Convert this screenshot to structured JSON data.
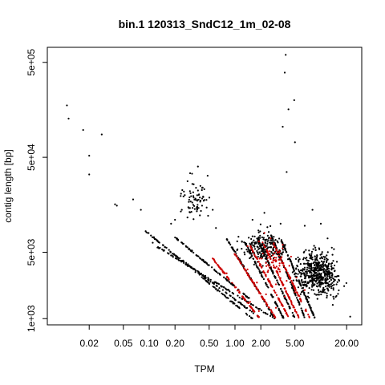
{
  "chart_data": {
    "type": "scatter",
    "title": "bin.1 120313_SndC12_1m_02-08",
    "xlabel": "TPM",
    "ylabel": "contig length [bp]",
    "x_scale": "log",
    "y_scale": "log",
    "xlim": [
      0.0065,
      30
    ],
    "ylim": [
      860,
      720000
    ],
    "x_ticks": [
      0.02,
      0.05,
      0.1,
      0.2,
      0.5,
      1.0,
      2.0,
      5.0,
      20.0
    ],
    "x_tick_labels": [
      "0.02",
      "0.05",
      "0.10",
      "0.20",
      "0.50",
      "1.00",
      "2.00",
      "5.00",
      "20.00"
    ],
    "y_ticks": [
      1000,
      5000,
      50000,
      500000
    ],
    "y_tick_labels": [
      "1e+03",
      "5e+03",
      "5e+04",
      "5e+05"
    ],
    "grid": false,
    "series": [
      {
        "color": "#000000",
        "points": [
          [
            0.011,
            176000
          ],
          [
            0.0115,
            128000
          ],
          [
            0.017,
            97000
          ],
          [
            0.02,
            33000
          ],
          [
            0.02,
            52000
          ],
          [
            0.028,
            87000
          ],
          [
            0.04,
            16000
          ],
          [
            0.042,
            15500
          ],
          [
            0.065,
            18000
          ],
          [
            0.08,
            14000
          ],
          [
            0.093,
            8100
          ],
          [
            0.11,
            6300
          ],
          [
            0.125,
            5600
          ],
          [
            0.18,
            10000
          ],
          [
            0.2,
            11000
          ],
          [
            0.24,
            14000
          ],
          [
            0.26,
            20000
          ],
          [
            0.28,
            28000
          ],
          [
            0.3,
            34000
          ],
          [
            0.33,
            26000
          ],
          [
            0.37,
            40000
          ],
          [
            0.42,
            24000
          ],
          [
            0.48,
            32000
          ],
          [
            0.55,
            14000
          ],
          [
            0.6,
            9000
          ],
          [
            1.6,
            11000
          ],
          [
            2.2,
            13000
          ],
          [
            3.6,
            105000
          ],
          [
            3.8,
            390000
          ],
          [
            3.9,
            600000
          ],
          [
            4.0,
            35000
          ],
          [
            4.2,
            160000
          ],
          [
            5.0,
            72000
          ],
          [
            4.9,
            200000
          ],
          [
            3.4,
            10000
          ],
          [
            6.5,
            9500
          ],
          [
            8.0,
            14000
          ],
          [
            10.0,
            10000
          ],
          [
            12.0,
            7000
          ],
          [
            22.0,
            1050
          ]
        ]
      },
      {
        "color": "#cc0000",
        "points": [
          [
            0.55,
            4300
          ],
          [
            0.8,
            3000
          ],
          [
            1.1,
            2000
          ],
          [
            1.5,
            1500
          ],
          [
            1.9,
            1200
          ],
          [
            1.0,
            4700
          ],
          [
            1.4,
            3300
          ],
          [
            1.8,
            2400
          ],
          [
            2.3,
            1800
          ],
          [
            3.0,
            1300
          ],
          [
            1.4,
            5800
          ],
          [
            1.8,
            4300
          ],
          [
            2.4,
            3100
          ],
          [
            3.0,
            2300
          ],
          [
            3.8,
            1700
          ],
          [
            1.9,
            6500
          ],
          [
            2.5,
            4800
          ],
          [
            3.2,
            3400
          ],
          [
            4.0,
            2500
          ],
          [
            5.0,
            1900
          ],
          [
            2.6,
            7000
          ],
          [
            3.3,
            5000
          ],
          [
            4.3,
            3600
          ],
          [
            5.2,
            2700
          ],
          [
            6.5,
            2000
          ],
          [
            2.8,
            4100
          ],
          [
            3.3,
            3300
          ],
          [
            4.5,
            4500
          ],
          [
            2.2,
            8000
          ],
          [
            3.6,
            6000
          ]
        ]
      }
    ],
    "diagonal_bands": [
      {
        "color": "#000000",
        "from": [
          0.09,
          8400
        ],
        "to": [
          1.6,
          1000
        ]
      },
      {
        "color": "#000000",
        "from": [
          0.125,
          5700
        ],
        "to": [
          2.9,
          1000
        ]
      },
      {
        "color": "#000000",
        "from": [
          0.17,
          5200
        ],
        "to": [
          1.9,
          1040
        ]
      },
      {
        "color": "#cc0000",
        "from": [
          0.55,
          4300
        ],
        "to": [
          1.95,
          1000
        ]
      },
      {
        "color": "#000000",
        "from": [
          0.2,
          7200
        ],
        "to": [
          1.5,
          1600
        ]
      },
      {
        "color": "#000000",
        "from": [
          0.8,
          7000
        ],
        "to": [
          2.9,
          1000
        ]
      },
      {
        "color": "#cc0000",
        "from": [
          1.0,
          4800
        ],
        "to": [
          3.0,
          1000
        ]
      },
      {
        "color": "#000000",
        "from": [
          1.3,
          6400
        ],
        "to": [
          3.7,
          1000
        ]
      },
      {
        "color": "#cc0000",
        "from": [
          1.5,
          5800
        ],
        "to": [
          4.3,
          1000
        ]
      },
      {
        "color": "#000000",
        "from": [
          1.8,
          7000
        ],
        "to": [
          5.0,
          1000
        ]
      },
      {
        "color": "#cc0000",
        "from": [
          2.1,
          6400
        ],
        "to": [
          5.6,
          1000
        ]
      },
      {
        "color": "#000000",
        "from": [
          2.6,
          7800
        ],
        "to": [
          6.6,
          1000
        ]
      },
      {
        "color": "#cc0000",
        "from": [
          2.8,
          6200
        ],
        "to": [
          7.4,
          1000
        ]
      },
      {
        "color": "#000000",
        "from": [
          3.4,
          7000
        ],
        "to": [
          8.6,
          1000
        ]
      }
    ],
    "clusters": [
      {
        "color": "#000000",
        "center": [
          9.0,
          3000
        ],
        "spread": [
          0.32,
          0.27
        ],
        "count": 540
      },
      {
        "color": "#000000",
        "center": [
          2.2,
          5600
        ],
        "spread": [
          0.3,
          0.22
        ],
        "count": 210
      },
      {
        "color": "#000000",
        "center": [
          0.35,
          17000
        ],
        "spread": [
          0.2,
          0.25
        ],
        "count": 70
      },
      {
        "color": "#cc0000",
        "center": [
          2.8,
          4200
        ],
        "spread": [
          0.2,
          0.18
        ],
        "count": 40
      }
    ]
  }
}
